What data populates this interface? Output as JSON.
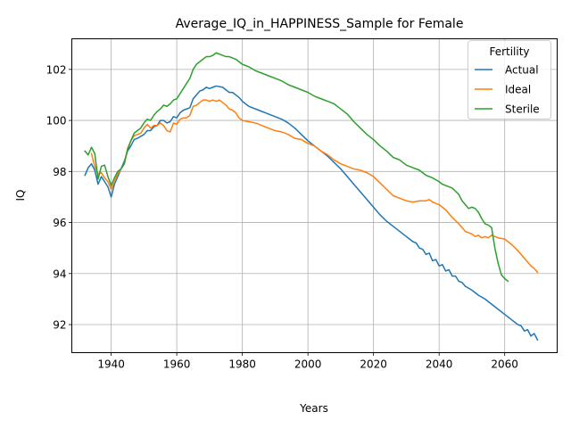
{
  "chart_data": {
    "type": "line",
    "title": "Average_IQ_in_HAPPINESS_Sample for Female",
    "xlabel": "Years",
    "ylabel": "IQ",
    "xlim": [
      1928,
      2076
    ],
    "ylim": [
      90.9,
      103.2
    ],
    "xticks": [
      1940,
      1960,
      1980,
      2000,
      2020,
      2040,
      2060
    ],
    "yticks": [
      92,
      94,
      96,
      98,
      100,
      102
    ],
    "grid": true,
    "legend": {
      "title": "Fertility",
      "placement": "top-right"
    },
    "series": [
      {
        "name": "Actual",
        "color": "#1f77b4",
        "points": [
          [
            1932,
            97.85
          ],
          [
            1933,
            98.15
          ],
          [
            1934,
            98.3
          ],
          [
            1935,
            98.05
          ],
          [
            1936,
            97.5
          ],
          [
            1937,
            97.8
          ],
          [
            1938,
            97.6
          ],
          [
            1939,
            97.4
          ],
          [
            1940,
            97.0
          ],
          [
            1941,
            97.5
          ],
          [
            1942,
            97.8
          ],
          [
            1943,
            98.1
          ],
          [
            1944,
            98.4
          ],
          [
            1945,
            98.8
          ],
          [
            1946,
            99.0
          ],
          [
            1947,
            99.25
          ],
          [
            1948,
            99.3
          ],
          [
            1950,
            99.45
          ],
          [
            1951,
            99.6
          ],
          [
            1952,
            99.6
          ],
          [
            1953,
            99.75
          ],
          [
            1954,
            99.8
          ],
          [
            1955,
            100.0
          ],
          [
            1956,
            100.0
          ],
          [
            1957,
            99.9
          ],
          [
            1958,
            99.95
          ],
          [
            1959,
            100.15
          ],
          [
            1960,
            100.1
          ],
          [
            1961,
            100.3
          ],
          [
            1962,
            100.4
          ],
          [
            1964,
            100.5
          ],
          [
            1965,
            100.85
          ],
          [
            1966,
            101.0
          ],
          [
            1967,
            101.15
          ],
          [
            1968,
            101.2
          ],
          [
            1969,
            101.3
          ],
          [
            1970,
            101.25
          ],
          [
            1971,
            101.3
          ],
          [
            1972,
            101.35
          ],
          [
            1974,
            101.3
          ],
          [
            1975,
            101.2
          ],
          [
            1976,
            101.1
          ],
          [
            1977,
            101.1
          ],
          [
            1978,
            101.0
          ],
          [
            1979,
            100.9
          ],
          [
            1980,
            100.75
          ],
          [
            1982,
            100.55
          ],
          [
            1985,
            100.4
          ],
          [
            1988,
            100.25
          ],
          [
            1990,
            100.15
          ],
          [
            1992,
            100.05
          ],
          [
            1994,
            99.9
          ],
          [
            1996,
            99.7
          ],
          [
            1998,
            99.45
          ],
          [
            2000,
            99.2
          ],
          [
            2002,
            99.0
          ],
          [
            2004,
            98.8
          ],
          [
            2006,
            98.6
          ],
          [
            2008,
            98.35
          ],
          [
            2010,
            98.1
          ],
          [
            2012,
            97.8
          ],
          [
            2014,
            97.5
          ],
          [
            2016,
            97.2
          ],
          [
            2018,
            96.9
          ],
          [
            2019,
            96.75
          ],
          [
            2020,
            96.6
          ],
          [
            2022,
            96.3
          ],
          [
            2024,
            96.05
          ],
          [
            2026,
            95.85
          ],
          [
            2028,
            95.65
          ],
          [
            2030,
            95.45
          ],
          [
            2032,
            95.25
          ],
          [
            2033,
            95.2
          ],
          [
            2034,
            95.0
          ],
          [
            2035,
            94.95
          ],
          [
            2036,
            94.75
          ],
          [
            2037,
            94.8
          ],
          [
            2038,
            94.5
          ],
          [
            2039,
            94.55
          ],
          [
            2040,
            94.3
          ],
          [
            2041,
            94.35
          ],
          [
            2042,
            94.1
          ],
          [
            2043,
            94.15
          ],
          [
            2044,
            93.9
          ],
          [
            2045,
            93.9
          ],
          [
            2046,
            93.7
          ],
          [
            2047,
            93.65
          ],
          [
            2048,
            93.5
          ],
          [
            2050,
            93.35
          ],
          [
            2052,
            93.15
          ],
          [
            2054,
            93.0
          ],
          [
            2056,
            92.8
          ],
          [
            2058,
            92.6
          ],
          [
            2060,
            92.4
          ],
          [
            2062,
            92.2
          ],
          [
            2064,
            92.0
          ],
          [
            2065,
            91.95
          ],
          [
            2066,
            91.75
          ],
          [
            2067,
            91.8
          ],
          [
            2068,
            91.55
          ],
          [
            2069,
            91.65
          ],
          [
            2070,
            91.4
          ]
        ]
      },
      {
        "name": "Ideal",
        "color": "#ff7f0e",
        "points": [
          [
            1934,
            98.7
          ],
          [
            1935,
            98.2
          ],
          [
            1936,
            97.9
          ],
          [
            1937,
            97.95
          ],
          [
            1938,
            97.75
          ],
          [
            1939,
            97.6
          ],
          [
            1940,
            97.3
          ],
          [
            1941,
            97.6
          ],
          [
            1942,
            97.9
          ],
          [
            1943,
            98.1
          ],
          [
            1944,
            98.3
          ],
          [
            1945,
            98.9
          ],
          [
            1946,
            99.2
          ],
          [
            1947,
            99.4
          ],
          [
            1948,
            99.45
          ],
          [
            1949,
            99.5
          ],
          [
            1950,
            99.7
          ],
          [
            1951,
            99.85
          ],
          [
            1952,
            99.7
          ],
          [
            1953,
            99.8
          ],
          [
            1954,
            99.8
          ],
          [
            1955,
            99.9
          ],
          [
            1956,
            99.8
          ],
          [
            1957,
            99.6
          ],
          [
            1958,
            99.55
          ],
          [
            1959,
            99.9
          ],
          [
            1960,
            99.85
          ],
          [
            1961,
            100.05
          ],
          [
            1962,
            100.1
          ],
          [
            1963,
            100.1
          ],
          [
            1964,
            100.2
          ],
          [
            1965,
            100.55
          ],
          [
            1966,
            100.6
          ],
          [
            1967,
            100.7
          ],
          [
            1968,
            100.8
          ],
          [
            1969,
            100.8
          ],
          [
            1970,
            100.75
          ],
          [
            1971,
            100.8
          ],
          [
            1972,
            100.75
          ],
          [
            1973,
            100.8
          ],
          [
            1974,
            100.7
          ],
          [
            1975,
            100.6
          ],
          [
            1976,
            100.45
          ],
          [
            1977,
            100.4
          ],
          [
            1978,
            100.3
          ],
          [
            1979,
            100.1
          ],
          [
            1980,
            100.0
          ],
          [
            1982,
            99.95
          ],
          [
            1984,
            99.9
          ],
          [
            1986,
            99.8
          ],
          [
            1988,
            99.7
          ],
          [
            1990,
            99.6
          ],
          [
            1992,
            99.55
          ],
          [
            1994,
            99.45
          ],
          [
            1996,
            99.3
          ],
          [
            1998,
            99.25
          ],
          [
            2000,
            99.1
          ],
          [
            2002,
            99.0
          ],
          [
            2004,
            98.8
          ],
          [
            2006,
            98.65
          ],
          [
            2008,
            98.45
          ],
          [
            2010,
            98.3
          ],
          [
            2012,
            98.2
          ],
          [
            2014,
            98.1
          ],
          [
            2016,
            98.05
          ],
          [
            2018,
            97.95
          ],
          [
            2020,
            97.8
          ],
          [
            2022,
            97.55
          ],
          [
            2024,
            97.3
          ],
          [
            2026,
            97.05
          ],
          [
            2028,
            96.95
          ],
          [
            2030,
            96.85
          ],
          [
            2032,
            96.8
          ],
          [
            2034,
            96.85
          ],
          [
            2036,
            96.85
          ],
          [
            2037,
            96.9
          ],
          [
            2038,
            96.8
          ],
          [
            2040,
            96.7
          ],
          [
            2042,
            96.5
          ],
          [
            2044,
            96.2
          ],
          [
            2046,
            95.95
          ],
          [
            2047,
            95.8
          ],
          [
            2048,
            95.65
          ],
          [
            2050,
            95.55
          ],
          [
            2051,
            95.45
          ],
          [
            2052,
            95.5
          ],
          [
            2053,
            95.4
          ],
          [
            2054,
            95.45
          ],
          [
            2055,
            95.4
          ],
          [
            2056,
            95.5
          ],
          [
            2058,
            95.4
          ],
          [
            2060,
            95.35
          ],
          [
            2062,
            95.15
          ],
          [
            2064,
            94.9
          ],
          [
            2066,
            94.6
          ],
          [
            2068,
            94.3
          ],
          [
            2069,
            94.2
          ],
          [
            2070,
            94.05
          ]
        ]
      },
      {
        "name": "Sterile",
        "color": "#2ca02c",
        "points": [
          [
            1932,
            98.8
          ],
          [
            1933,
            98.65
          ],
          [
            1934,
            98.95
          ],
          [
            1935,
            98.7
          ],
          [
            1936,
            97.7
          ],
          [
            1937,
            98.2
          ],
          [
            1938,
            98.25
          ],
          [
            1939,
            97.8
          ],
          [
            1940,
            97.45
          ],
          [
            1941,
            97.75
          ],
          [
            1942,
            98.0
          ],
          [
            1943,
            98.1
          ],
          [
            1944,
            98.3
          ],
          [
            1945,
            98.85
          ],
          [
            1946,
            99.2
          ],
          [
            1947,
            99.5
          ],
          [
            1948,
            99.6
          ],
          [
            1949,
            99.7
          ],
          [
            1950,
            99.9
          ],
          [
            1951,
            100.05
          ],
          [
            1952,
            100.0
          ],
          [
            1953,
            100.2
          ],
          [
            1954,
            100.35
          ],
          [
            1955,
            100.45
          ],
          [
            1956,
            100.6
          ],
          [
            1957,
            100.55
          ],
          [
            1958,
            100.65
          ],
          [
            1959,
            100.8
          ],
          [
            1960,
            100.85
          ],
          [
            1961,
            101.05
          ],
          [
            1962,
            101.25
          ],
          [
            1963,
            101.45
          ],
          [
            1964,
            101.65
          ],
          [
            1965,
            102.0
          ],
          [
            1966,
            102.2
          ],
          [
            1967,
            102.3
          ],
          [
            1968,
            102.4
          ],
          [
            1969,
            102.5
          ],
          [
            1970,
            102.5
          ],
          [
            1971,
            102.55
          ],
          [
            1972,
            102.65
          ],
          [
            1973,
            102.6
          ],
          [
            1974,
            102.55
          ],
          [
            1975,
            102.5
          ],
          [
            1976,
            102.5
          ],
          [
            1978,
            102.4
          ],
          [
            1979,
            102.3
          ],
          [
            1980,
            102.2
          ],
          [
            1982,
            102.1
          ],
          [
            1984,
            101.95
          ],
          [
            1986,
            101.85
          ],
          [
            1988,
            101.75
          ],
          [
            1990,
            101.65
          ],
          [
            1992,
            101.55
          ],
          [
            1994,
            101.4
          ],
          [
            1996,
            101.3
          ],
          [
            1998,
            101.2
          ],
          [
            2000,
            101.1
          ],
          [
            2002,
            100.95
          ],
          [
            2004,
            100.85
          ],
          [
            2006,
            100.75
          ],
          [
            2008,
            100.65
          ],
          [
            2010,
            100.45
          ],
          [
            2012,
            100.25
          ],
          [
            2014,
            99.95
          ],
          [
            2016,
            99.7
          ],
          [
            2018,
            99.45
          ],
          [
            2020,
            99.25
          ],
          [
            2022,
            99.0
          ],
          [
            2024,
            98.8
          ],
          [
            2026,
            98.55
          ],
          [
            2027,
            98.5
          ],
          [
            2028,
            98.45
          ],
          [
            2030,
            98.25
          ],
          [
            2032,
            98.15
          ],
          [
            2034,
            98.05
          ],
          [
            2035,
            97.95
          ],
          [
            2036,
            97.85
          ],
          [
            2038,
            97.75
          ],
          [
            2040,
            97.6
          ],
          [
            2041,
            97.5
          ],
          [
            2042,
            97.45
          ],
          [
            2044,
            97.35
          ],
          [
            2046,
            97.1
          ],
          [
            2047,
            96.85
          ],
          [
            2048,
            96.7
          ],
          [
            2049,
            96.55
          ],
          [
            2050,
            96.6
          ],
          [
            2051,
            96.55
          ],
          [
            2052,
            96.4
          ],
          [
            2053,
            96.15
          ],
          [
            2054,
            95.95
          ],
          [
            2055,
            95.9
          ],
          [
            2056,
            95.8
          ],
          [
            2057,
            95.0
          ],
          [
            2058,
            94.4
          ],
          [
            2059,
            93.95
          ],
          [
            2060,
            93.8
          ],
          [
            2061,
            93.7
          ]
        ]
      }
    ]
  }
}
